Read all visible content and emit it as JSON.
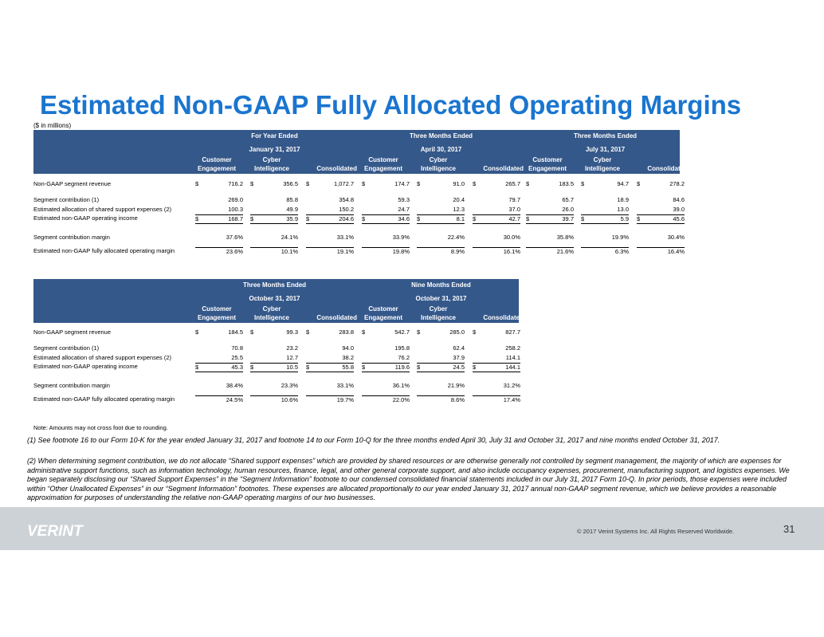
{
  "title": "Estimated Non-GAAP Fully Allocated Operating Margins",
  "units": "($ in millions)",
  "column_headers": {
    "customer_1": "Customer",
    "customer_2": "Engagement",
    "cyber_1": "Cyber",
    "cyber_2": "Intelligence",
    "consolidated": "Consolidated"
  },
  "row_labels": {
    "revenue": "Non-GAAP segment revenue",
    "contribution": "Segment contribution (1)",
    "shared": "Estimated allocation of shared support expenses (2)",
    "income": "Estimated non-GAAP operating income",
    "contribution_margin": "Segment contribution margin",
    "allocated_margin": "Estimated non-GAAP fully allocated operating margin"
  },
  "currency_symbol": "$",
  "table1": {
    "periods": [
      {
        "title": "For Year Ended",
        "date": "January 31, 2017",
        "revenue": [
          "716.2",
          "356.5",
          "1,072.7"
        ],
        "contribution": [
          "269.0",
          "85.8",
          "354.8"
        ],
        "shared": [
          "100.3",
          "49.9",
          "150.2"
        ],
        "income": [
          "168.7",
          "35.9",
          "204.6"
        ],
        "contribution_margin": [
          "37.6%",
          "24.1%",
          "33.1%"
        ],
        "allocated_margin": [
          "23.6%",
          "10.1%",
          "19.1%"
        ]
      },
      {
        "title": "Three Months Ended",
        "date": "April 30, 2017",
        "revenue": [
          "174.7",
          "91.0",
          "265.7"
        ],
        "contribution": [
          "59.3",
          "20.4",
          "79.7"
        ],
        "shared": [
          "24.7",
          "12.3",
          "37.0"
        ],
        "income": [
          "34.6",
          "8.1",
          "42.7"
        ],
        "contribution_margin": [
          "33.9%",
          "22.4%",
          "30.0%"
        ],
        "allocated_margin": [
          "19.8%",
          "8.9%",
          "16.1%"
        ]
      },
      {
        "title": "Three Months Ended",
        "date": "July 31, 2017",
        "revenue": [
          "183.5",
          "94.7",
          "278.2"
        ],
        "contribution": [
          "65.7",
          "18.9",
          "84.6"
        ],
        "shared": [
          "26.0",
          "13.0",
          "39.0"
        ],
        "income": [
          "39.7",
          "5.9",
          "45.6"
        ],
        "contribution_margin": [
          "35.8%",
          "19.9%",
          "30.4%"
        ],
        "allocated_margin": [
          "21.6%",
          "6.3%",
          "16.4%"
        ]
      }
    ]
  },
  "table2": {
    "periods": [
      {
        "title": "Three Months Ended",
        "date": "October 31, 2017",
        "revenue": [
          "184.5",
          "99.3",
          "283.8"
        ],
        "contribution": [
          "70.8",
          "23.2",
          "94.0"
        ],
        "shared": [
          "25.5",
          "12.7",
          "38.2"
        ],
        "income": [
          "45.3",
          "10.5",
          "55.8"
        ],
        "contribution_margin": [
          "38.4%",
          "23.3%",
          "33.1%"
        ],
        "allocated_margin": [
          "24.5%",
          "10.6%",
          "19.7%"
        ]
      },
      {
        "title": "Nine Months Ended",
        "date": "October 31, 2017",
        "revenue": [
          "542.7",
          "285.0",
          "827.7"
        ],
        "contribution": [
          "195.8",
          "62.4",
          "258.2"
        ],
        "shared": [
          "76.2",
          "37.9",
          "114.1"
        ],
        "income": [
          "119.6",
          "24.5",
          "144.1"
        ],
        "contribution_margin": [
          "36.1%",
          "21.9%",
          "31.2%"
        ],
        "allocated_margin": [
          "22.0%",
          "8.6%",
          "17.4%"
        ]
      }
    ]
  },
  "note": "Note: Amounts may not cross foot due to rounding.",
  "footnote1": "(1)   See footnote 16 to our Form 10-K for the year ended January 31, 2017 and footnote 14 to our Form 10-Q for the three months ended April 30, July 31 and October 31, 2017 and nine months ended October 31, 2017.",
  "footnote2": "(2) When determining segment contribution, we do not allocate “Shared support expenses” which are provided by shared resources or are otherwise generally not controlled by segment management, the majority of which are expenses for administrative support functions, such as information technology, human resources, finance, legal, and other general corporate support, and also include occupancy expenses, procurement, manufacturing support, and logistics expenses.  We began separately disclosing our “Shared Support Expenses” in the “Segment Information” footnote to our condensed consolidated financial statements included in our July 31, 2017 Form 10-Q.  In prior periods, those expenses were included within “Other Unallocated Expenses” in our “Segment Information” footnotes. These expenses are allocated proportionally to our year ended January 31, 2017 annual non-GAAP segment revenue, which we believe provides a reasonable approximation for purposes of understanding the relative non-GAAP operating margins of our two businesses.",
  "footer": {
    "logo_text": "VERINT",
    "copyright": "© 2017 Verint Systems Inc. All Rights Reserved Worldwide.",
    "page_number": "31"
  },
  "colors": {
    "title": "#1a75cf",
    "header_bg": "#35588a",
    "footer_bg": "#cdd2d6"
  }
}
